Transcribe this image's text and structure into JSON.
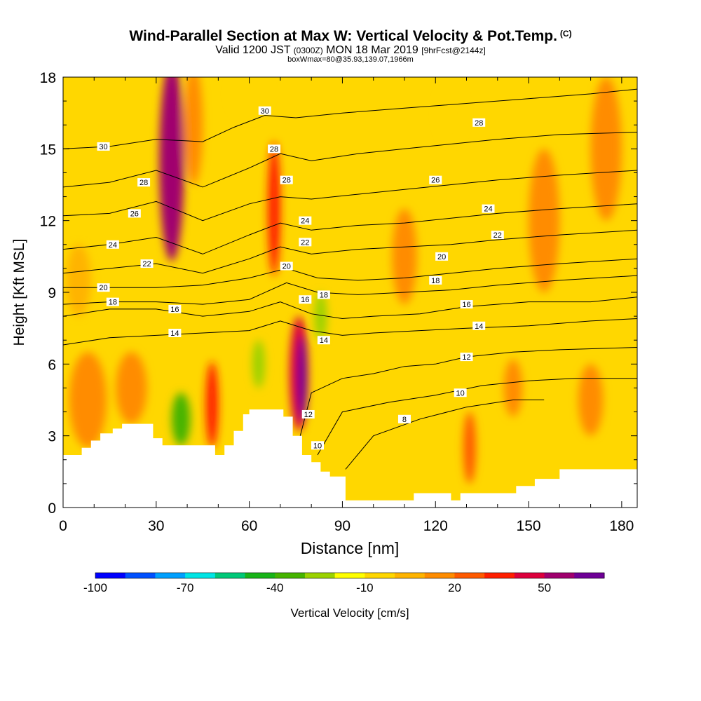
{
  "header": {
    "title": "Wind-Parallel Section at Max W: Vertical Velocity & Pot.Temp.",
    "copyright": "(C)",
    "valid_prefix": "Valid 1200 JST",
    "valid_utc": "(0300Z)",
    "valid_date": "MON 18 Mar 2019",
    "forecast": "[9hrFcst@2144z]",
    "box_info": "boxWmax=80@35.93,139.07,1966m"
  },
  "colors": {
    "terrain": "#ffffff",
    "background_field": "#ffd700",
    "contour": "#000000"
  },
  "chart_data": {
    "type": "heatmap",
    "xlabel": "Distance [nm]",
    "ylabel": "Height [Kft MSL]",
    "xlim": [
      0,
      185
    ],
    "ylim": [
      0,
      18
    ],
    "xticks": [
      "0",
      "30",
      "60",
      "90",
      "120",
      "150",
      "180"
    ],
    "xtick_values": [
      0,
      30,
      60,
      90,
      120,
      150,
      180
    ],
    "yticks": [
      "0",
      "3",
      "6",
      "9",
      "12",
      "15",
      "18"
    ],
    "ytick_values": [
      0,
      3,
      6,
      9,
      12,
      15,
      18
    ],
    "colorbar": {
      "label": "Vertical Velocity [cm/s]",
      "tick_labels": [
        "-100",
        "-70",
        "-40",
        "-10",
        "20",
        "50"
      ],
      "tick_values": [
        -100,
        -70,
        -40,
        -10,
        20,
        50
      ],
      "range": [
        -100,
        70
      ],
      "colors": [
        "#0000ff",
        "#0050ff",
        "#00a0ff",
        "#00e5e5",
        "#00c878",
        "#18b418",
        "#46b400",
        "#9bd200",
        "#ffff00",
        "#ffd700",
        "#ffb400",
        "#ff8c00",
        "#ff5a00",
        "#ff1e00",
        "#dc003c",
        "#a0006e",
        "#6e0096"
      ]
    },
    "terrain_profile": [
      [
        0,
        2.2
      ],
      [
        6,
        2.2
      ],
      [
        6,
        2.5
      ],
      [
        9,
        2.5
      ],
      [
        9,
        2.8
      ],
      [
        12,
        2.8
      ],
      [
        12,
        3.1
      ],
      [
        16,
        3.1
      ],
      [
        16,
        3.3
      ],
      [
        19,
        3.3
      ],
      [
        19,
        3.5
      ],
      [
        29,
        3.5
      ],
      [
        29,
        2.9
      ],
      [
        32,
        2.9
      ],
      [
        32,
        2.6
      ],
      [
        49,
        2.6
      ],
      [
        49,
        2.2
      ],
      [
        52,
        2.2
      ],
      [
        52,
        2.6
      ],
      [
        55,
        2.6
      ],
      [
        55,
        3.2
      ],
      [
        58,
        3.2
      ],
      [
        58,
        3.9
      ],
      [
        60,
        3.9
      ],
      [
        60,
        4.1
      ],
      [
        71,
        4.1
      ],
      [
        71,
        3.8
      ],
      [
        74,
        3.8
      ],
      [
        74,
        3.0
      ],
      [
        77,
        3.0
      ],
      [
        77,
        2.2
      ],
      [
        80,
        2.2
      ],
      [
        80,
        1.9
      ],
      [
        83,
        1.9
      ],
      [
        83,
        1.5
      ],
      [
        86,
        1.5
      ],
      [
        86,
        1.3
      ],
      [
        91,
        1.3
      ],
      [
        91,
        0.3
      ],
      [
        113,
        0.3
      ],
      [
        113,
        0.6
      ],
      [
        125,
        0.6
      ],
      [
        125,
        0.3
      ],
      [
        128,
        0.3
      ],
      [
        128,
        0.6
      ],
      [
        146,
        0.6
      ],
      [
        146,
        0.9
      ],
      [
        152,
        0.9
      ],
      [
        152,
        1.2
      ],
      [
        160,
        1.2
      ],
      [
        160,
        1.6
      ],
      [
        185,
        1.6
      ]
    ],
    "isentropes": [
      {
        "label": "8",
        "pts": [
          [
            91,
            1.6
          ],
          [
            100,
            3.0
          ],
          [
            115,
            3.7
          ],
          [
            130,
            4.2
          ],
          [
            145,
            4.5
          ],
          [
            155,
            4.5
          ]
        ]
      },
      {
        "label": "10",
        "pts": [
          [
            82,
            2.2
          ],
          [
            90,
            4.0
          ],
          [
            105,
            4.4
          ],
          [
            120,
            4.7
          ],
          [
            135,
            5.1
          ],
          [
            150,
            5.3
          ],
          [
            165,
            5.4
          ],
          [
            185,
            5.4
          ]
        ]
      },
      {
        "label": "12",
        "pts": [
          [
            76,
            2.8
          ],
          [
            80,
            4.8
          ],
          [
            90,
            5.4
          ],
          [
            100,
            5.6
          ],
          [
            110,
            5.9
          ],
          [
            120,
            6.0
          ],
          [
            130,
            6.3
          ],
          [
            145,
            6.5
          ],
          [
            160,
            6.6
          ],
          [
            185,
            6.7
          ]
        ]
      },
      {
        "label": "14",
        "pts": [
          [
            0,
            6.8
          ],
          [
            15,
            7.1
          ],
          [
            30,
            7.2
          ],
          [
            45,
            7.3
          ],
          [
            60,
            7.4
          ],
          [
            70,
            7.8
          ],
          [
            80,
            7.4
          ],
          [
            90,
            7.2
          ],
          [
            100,
            7.3
          ],
          [
            115,
            7.4
          ],
          [
            130,
            7.5
          ],
          [
            150,
            7.6
          ],
          [
            170,
            7.8
          ],
          [
            185,
            7.9
          ]
        ]
      },
      {
        "label": "16",
        "pts": [
          [
            0,
            8.0
          ],
          [
            15,
            8.3
          ],
          [
            30,
            8.3
          ],
          [
            45,
            8.0
          ],
          [
            60,
            8.2
          ],
          [
            70,
            8.6
          ],
          [
            80,
            8.1
          ],
          [
            90,
            7.9
          ],
          [
            100,
            8.0
          ],
          [
            115,
            8.1
          ],
          [
            130,
            8.4
          ],
          [
            150,
            8.6
          ],
          [
            170,
            8.6
          ],
          [
            185,
            8.8
          ]
        ]
      },
      {
        "label": "18",
        "pts": [
          [
            0,
            8.5
          ],
          [
            15,
            8.6
          ],
          [
            30,
            8.6
          ],
          [
            45,
            8.5
          ],
          [
            60,
            8.7
          ],
          [
            72,
            9.4
          ],
          [
            82,
            9.0
          ],
          [
            95,
            8.9
          ],
          [
            110,
            9.0
          ],
          [
            125,
            9.1
          ],
          [
            140,
            9.3
          ],
          [
            160,
            9.5
          ],
          [
            185,
            9.7
          ]
        ]
      },
      {
        "label": "20",
        "pts": [
          [
            0,
            9.2
          ],
          [
            15,
            9.2
          ],
          [
            30,
            9.2
          ],
          [
            45,
            9.3
          ],
          [
            60,
            9.6
          ],
          [
            72,
            10.0
          ],
          [
            82,
            9.6
          ],
          [
            95,
            9.5
          ],
          [
            110,
            9.6
          ],
          [
            125,
            9.8
          ],
          [
            140,
            10.0
          ],
          [
            160,
            10.2
          ],
          [
            185,
            10.4
          ]
        ]
      },
      {
        "label": "22",
        "pts": [
          [
            0,
            9.8
          ],
          [
            15,
            10.0
          ],
          [
            30,
            10.2
          ],
          [
            45,
            9.8
          ],
          [
            60,
            10.4
          ],
          [
            70,
            10.9
          ],
          [
            80,
            10.6
          ],
          [
            95,
            10.8
          ],
          [
            110,
            10.9
          ],
          [
            125,
            11.0
          ],
          [
            140,
            11.2
          ],
          [
            160,
            11.4
          ],
          [
            185,
            11.6
          ]
        ]
      },
      {
        "label": "24",
        "pts": [
          [
            0,
            10.8
          ],
          [
            15,
            11.0
          ],
          [
            30,
            11.3
          ],
          [
            45,
            10.6
          ],
          [
            60,
            11.4
          ],
          [
            70,
            11.9
          ],
          [
            80,
            11.6
          ],
          [
            95,
            11.8
          ],
          [
            110,
            11.9
          ],
          [
            125,
            12.1
          ],
          [
            140,
            12.3
          ],
          [
            160,
            12.5
          ],
          [
            185,
            12.7
          ]
        ]
      },
      {
        "label": "26",
        "pts": [
          [
            0,
            12.2
          ],
          [
            15,
            12.3
          ],
          [
            30,
            12.8
          ],
          [
            45,
            12.0
          ],
          [
            60,
            12.7
          ],
          [
            70,
            13.0
          ],
          [
            80,
            12.9
          ],
          [
            95,
            13.1
          ],
          [
            110,
            13.3
          ],
          [
            125,
            13.5
          ],
          [
            140,
            13.7
          ],
          [
            160,
            13.9
          ],
          [
            185,
            14.1
          ]
        ]
      },
      {
        "label": "28",
        "pts": [
          [
            0,
            13.4
          ],
          [
            15,
            13.6
          ],
          [
            30,
            14.1
          ],
          [
            45,
            13.4
          ],
          [
            60,
            14.2
          ],
          [
            70,
            14.8
          ],
          [
            80,
            14.5
          ],
          [
            95,
            14.8
          ],
          [
            110,
            15.0
          ],
          [
            125,
            15.2
          ],
          [
            140,
            15.4
          ],
          [
            160,
            15.6
          ],
          [
            185,
            15.7
          ]
        ]
      },
      {
        "label": "30",
        "pts": [
          [
            0,
            15.0
          ],
          [
            15,
            15.1
          ],
          [
            30,
            15.4
          ],
          [
            45,
            15.3
          ],
          [
            55,
            15.9
          ],
          [
            65,
            16.4
          ],
          [
            75,
            16.3
          ],
          [
            90,
            16.5
          ],
          [
            110,
            16.7
          ],
          [
            130,
            16.9
          ],
          [
            150,
            17.1
          ],
          [
            170,
            17.3
          ],
          [
            185,
            17.5
          ]
        ]
      }
    ],
    "isentrope_labels": [
      {
        "text": "30",
        "x": 13,
        "y": 15.1
      },
      {
        "text": "28",
        "x": 26,
        "y": 13.6
      },
      {
        "text": "26",
        "x": 23,
        "y": 12.3
      },
      {
        "text": "24",
        "x": 16,
        "y": 11.0
      },
      {
        "text": "22",
        "x": 27,
        "y": 10.2
      },
      {
        "text": "20",
        "x": 13,
        "y": 9.2
      },
      {
        "text": "18",
        "x": 16,
        "y": 8.6
      },
      {
        "text": "16",
        "x": 36,
        "y": 8.3
      },
      {
        "text": "14",
        "x": 36,
        "y": 7.3
      },
      {
        "text": "30",
        "x": 65,
        "y": 16.6
      },
      {
        "text": "28",
        "x": 68,
        "y": 15.0
      },
      {
        "text": "28",
        "x": 72,
        "y": 13.7
      },
      {
        "text": "24",
        "x": 78,
        "y": 12.0
      },
      {
        "text": "22",
        "x": 78,
        "y": 11.1
      },
      {
        "text": "20",
        "x": 72,
        "y": 10.1
      },
      {
        "text": "16",
        "x": 78,
        "y": 8.7
      },
      {
        "text": "18",
        "x": 84,
        "y": 8.9
      },
      {
        "text": "14",
        "x": 84,
        "y": 7.0
      },
      {
        "text": "12",
        "x": 79,
        "y": 3.9
      },
      {
        "text": "10",
        "x": 82,
        "y": 2.6
      },
      {
        "text": "8",
        "x": 110,
        "y": 3.7
      },
      {
        "text": "10",
        "x": 128,
        "y": 4.8
      },
      {
        "text": "12",
        "x": 130,
        "y": 6.3
      },
      {
        "text": "14",
        "x": 134,
        "y": 7.6
      },
      {
        "text": "16",
        "x": 130,
        "y": 8.5
      },
      {
        "text": "18",
        "x": 120,
        "y": 9.5
      },
      {
        "text": "20",
        "x": 122,
        "y": 10.5
      },
      {
        "text": "22",
        "x": 140,
        "y": 11.4
      },
      {
        "text": "24",
        "x": 137,
        "y": 12.5
      },
      {
        "text": "26",
        "x": 120,
        "y": 13.7
      },
      {
        "text": "28",
        "x": 134,
        "y": 16.1
      }
    ],
    "velocity_features": [
      {
        "x": 35,
        "y": 14.5,
        "rx": 4,
        "ry": 4.2,
        "value": 50
      },
      {
        "x": 35,
        "y": 14.5,
        "rx": 2.5,
        "ry": 3.8,
        "value": 55
      },
      {
        "x": 68,
        "y": 12.5,
        "rx": 2,
        "ry": 2.8,
        "value": 35
      },
      {
        "x": 48,
        "y": 4.3,
        "rx": 2,
        "ry": 1.8,
        "value": 35
      },
      {
        "x": 76,
        "y": 5.6,
        "rx": 3,
        "ry": 2.4,
        "value": 45
      },
      {
        "x": 77,
        "y": 5.4,
        "rx": 1.5,
        "ry": 1.8,
        "value": 60
      },
      {
        "x": 38,
        "y": 3.7,
        "rx": 3,
        "ry": 1.1,
        "value": -40
      },
      {
        "x": 63,
        "y": 6.0,
        "rx": 2,
        "ry": 1,
        "value": -30
      },
      {
        "x": 83,
        "y": 8.0,
        "rx": 2,
        "ry": 1,
        "value": -30
      },
      {
        "x": 8,
        "y": 4.5,
        "rx": 6,
        "ry": 2,
        "value": 15
      },
      {
        "x": 22,
        "y": 5.0,
        "rx": 5,
        "ry": 1.5,
        "value": 10
      },
      {
        "x": 131,
        "y": 2.5,
        "rx": 2,
        "ry": 1.5,
        "value": 25
      },
      {
        "x": 145,
        "y": 5.0,
        "rx": 3,
        "ry": 1.2,
        "value": 12
      },
      {
        "x": 170,
        "y": 4.5,
        "rx": 4,
        "ry": 1.5,
        "value": 12
      },
      {
        "x": 42,
        "y": 16.0,
        "rx": 3,
        "ry": 2.5,
        "value": 12
      },
      {
        "x": 110,
        "y": 10.5,
        "rx": 4,
        "ry": 2,
        "value": 10
      },
      {
        "x": 155,
        "y": 12.0,
        "rx": 5,
        "ry": 3,
        "value": 12
      },
      {
        "x": 175,
        "y": 15.0,
        "rx": 5,
        "ry": 3,
        "value": 10
      },
      {
        "x": 125,
        "y": 16.5,
        "rx": 4,
        "ry": 1.2,
        "value": -10
      },
      {
        "x": 60,
        "y": 17.3,
        "rx": 6,
        "ry": 1,
        "value": -10
      },
      {
        "x": 5,
        "y": 9.5,
        "rx": 4,
        "ry": 1.5,
        "value": 5
      }
    ]
  }
}
